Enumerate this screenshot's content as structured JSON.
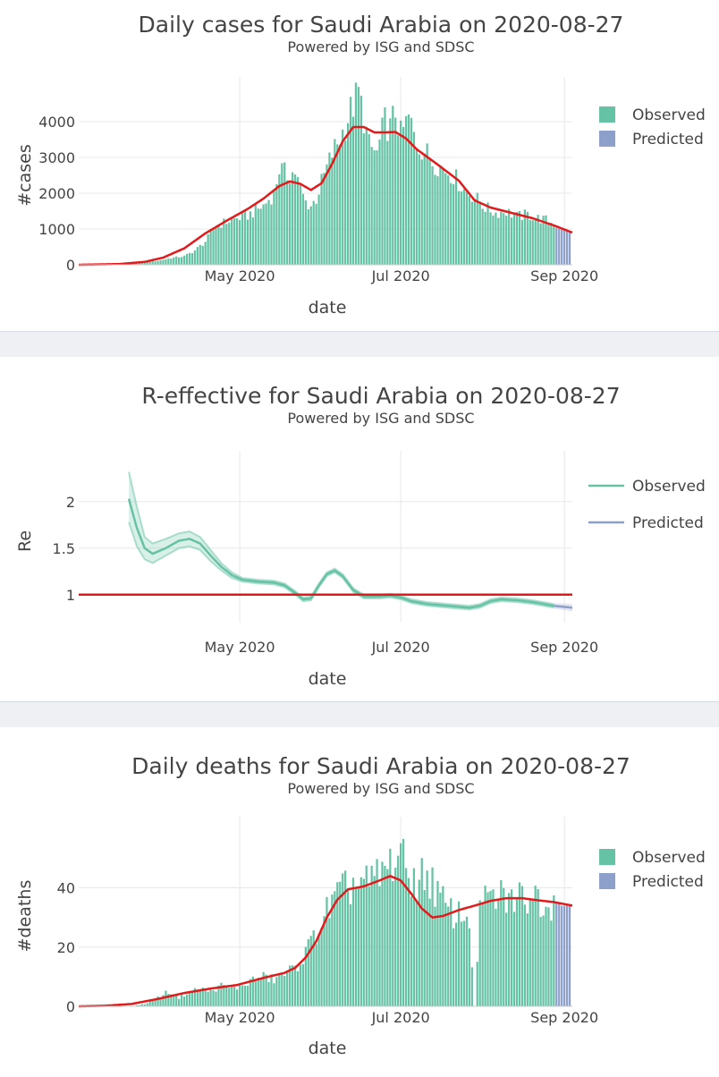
{
  "colors": {
    "observed": "#66c2a5",
    "predicted": "#8da0cb",
    "trend": "#e31a1c",
    "grid": "#e8e8e8"
  },
  "chart_data": [
    {
      "id": "cases",
      "type": "bar",
      "title": "Daily cases for Saudi Arabia on 2020-08-27",
      "subtitle": "Powered by ISG and SDSC",
      "xlabel": "date",
      "ylabel": "#cases",
      "ylim": [
        0,
        5000
      ],
      "yticks": [
        0,
        1000,
        2000,
        3000,
        4000
      ],
      "ytick_labels": [
        "0",
        "1000",
        "2000",
        "3000",
        "4000"
      ],
      "xticks": [
        {
          "day": 61,
          "label": "May 2020"
        },
        {
          "day": 122,
          "label": "Jul 2020"
        },
        {
          "day": 184,
          "label": "Sep 2020"
        }
      ],
      "x_range": [
        0,
        187
      ],
      "x_note": "day index counted from 2020-03-01",
      "legend": [
        "Observed",
        "Predicted"
      ],
      "legend_position": "top-right",
      "observed_start_day": 0,
      "observed_keypoints": [
        [
          0,
          1
        ],
        [
          10,
          15
        ],
        [
          20,
          50
        ],
        [
          30,
          110
        ],
        [
          35,
          190
        ],
        [
          40,
          240
        ],
        [
          44,
          400
        ],
        [
          48,
          650
        ],
        [
          52,
          1100
        ],
        [
          58,
          1250
        ],
        [
          64,
          1380
        ],
        [
          70,
          1650
        ],
        [
          74,
          2000
        ],
        [
          76,
          2700
        ],
        [
          79,
          2500
        ],
        [
          82,
          2600
        ],
        [
          84,
          2100
        ],
        [
          86,
          1750
        ],
        [
          88,
          1650
        ],
        [
          90,
          1850
        ],
        [
          92,
          2300
        ],
        [
          96,
          3100
        ],
        [
          100,
          3700
        ],
        [
          103,
          4300
        ],
        [
          106,
          4800
        ],
        [
          108,
          4100
        ],
        [
          110,
          3300
        ],
        [
          113,
          3100
        ],
        [
          116,
          4000
        ],
        [
          118,
          3800
        ],
        [
          120,
          4300
        ],
        [
          122,
          3600
        ],
        [
          125,
          4100
        ],
        [
          128,
          3400
        ],
        [
          131,
          3200
        ],
        [
          134,
          2900
        ],
        [
          138,
          2700
        ],
        [
          142,
          2500
        ],
        [
          146,
          2100
        ],
        [
          150,
          1900
        ],
        [
          154,
          1600
        ],
        [
          158,
          1450
        ],
        [
          162,
          1500
        ],
        [
          166,
          1350
        ],
        [
          170,
          1400
        ],
        [
          174,
          1300
        ],
        [
          177,
          1250
        ],
        [
          180,
          1150
        ]
      ],
      "predicted_start_day": 181,
      "predicted_values": [
        1030,
        1000,
        980,
        960,
        940,
        920
      ],
      "trend_keypoints": [
        [
          0,
          0
        ],
        [
          15,
          20
        ],
        [
          25,
          80
        ],
        [
          32,
          200
        ],
        [
          40,
          460
        ],
        [
          48,
          880
        ],
        [
          56,
          1230
        ],
        [
          64,
          1560
        ],
        [
          70,
          1850
        ],
        [
          76,
          2200
        ],
        [
          80,
          2330
        ],
        [
          84,
          2260
        ],
        [
          88,
          2090
        ],
        [
          92,
          2280
        ],
        [
          96,
          2820
        ],
        [
          100,
          3450
        ],
        [
          104,
          3850
        ],
        [
          108,
          3850
        ],
        [
          112,
          3700
        ],
        [
          116,
          3700
        ],
        [
          120,
          3710
        ],
        [
          124,
          3530
        ],
        [
          128,
          3230
        ],
        [
          136,
          2800
        ],
        [
          144,
          2350
        ],
        [
          150,
          1800
        ],
        [
          156,
          1600
        ],
        [
          164,
          1450
        ],
        [
          172,
          1300
        ],
        [
          180,
          1100
        ],
        [
          187,
          900
        ]
      ]
    },
    {
      "id": "reff",
      "type": "line",
      "title": "R-effective for Saudi Arabia on 2020-08-27",
      "subtitle": "Powered by ISG and SDSC",
      "xlabel": "date",
      "ylabel": "Re",
      "ylim": [
        0.7,
        2.45
      ],
      "yticks": [
        1,
        1.5,
        2
      ],
      "ytick_labels": [
        "1",
        "1.5",
        "2"
      ],
      "xticks": [
        {
          "day": 61,
          "label": "May 2020"
        },
        {
          "day": 122,
          "label": "Jul 2020"
        },
        {
          "day": 184,
          "label": "Sep 2020"
        }
      ],
      "x_range": [
        0,
        187
      ],
      "legend": [
        "Observed",
        "Predicted"
      ],
      "legend_position": "top-right",
      "reference_line": 1,
      "observed_keypoints": [
        [
          19,
          2.03
        ],
        [
          22,
          1.72
        ],
        [
          25,
          1.5
        ],
        [
          28,
          1.44
        ],
        [
          33,
          1.5
        ],
        [
          38,
          1.58
        ],
        [
          42,
          1.6
        ],
        [
          46,
          1.55
        ],
        [
          50,
          1.42
        ],
        [
          54,
          1.3
        ],
        [
          58,
          1.21
        ],
        [
          62,
          1.16
        ],
        [
          68,
          1.14
        ],
        [
          74,
          1.13
        ],
        [
          78,
          1.1
        ],
        [
          82,
          1.02
        ],
        [
          85,
          0.95
        ],
        [
          88,
          0.96
        ],
        [
          91,
          1.1
        ],
        [
          94,
          1.22
        ],
        [
          97,
          1.26
        ],
        [
          100,
          1.2
        ],
        [
          104,
          1.05
        ],
        [
          108,
          0.98
        ],
        [
          114,
          0.98
        ],
        [
          118,
          0.99
        ],
        [
          122,
          0.97
        ],
        [
          126,
          0.93
        ],
        [
          132,
          0.9
        ],
        [
          140,
          0.88
        ],
        [
          148,
          0.86
        ],
        [
          152,
          0.88
        ],
        [
          156,
          0.93
        ],
        [
          160,
          0.95
        ],
        [
          166,
          0.94
        ],
        [
          172,
          0.92
        ],
        [
          180,
          0.88
        ]
      ],
      "observed_upper_keypoints": [
        [
          19,
          2.32
        ],
        [
          22,
          1.95
        ],
        [
          25,
          1.62
        ],
        [
          28,
          1.55
        ],
        [
          33,
          1.6
        ],
        [
          38,
          1.66
        ],
        [
          42,
          1.68
        ],
        [
          46,
          1.62
        ],
        [
          50,
          1.48
        ],
        [
          54,
          1.34
        ],
        [
          58,
          1.24
        ],
        [
          62,
          1.18
        ],
        [
          68,
          1.16
        ],
        [
          74,
          1.15
        ],
        [
          78,
          1.12
        ],
        [
          82,
          1.04
        ],
        [
          85,
          0.97
        ],
        [
          88,
          0.98
        ],
        [
          91,
          1.12
        ],
        [
          94,
          1.24
        ],
        [
          97,
          1.28
        ],
        [
          100,
          1.22
        ],
        [
          104,
          1.07
        ],
        [
          108,
          1.0
        ],
        [
          114,
          1.0
        ],
        [
          118,
          1.01
        ],
        [
          122,
          0.99
        ],
        [
          126,
          0.95
        ],
        [
          132,
          0.92
        ],
        [
          140,
          0.9
        ],
        [
          148,
          0.88
        ],
        [
          152,
          0.9
        ],
        [
          156,
          0.95
        ],
        [
          160,
          0.97
        ],
        [
          166,
          0.96
        ],
        [
          172,
          0.94
        ],
        [
          180,
          0.9
        ]
      ],
      "observed_lower_keypoints": [
        [
          19,
          1.78
        ],
        [
          22,
          1.52
        ],
        [
          25,
          1.38
        ],
        [
          28,
          1.34
        ],
        [
          33,
          1.42
        ],
        [
          38,
          1.5
        ],
        [
          42,
          1.52
        ],
        [
          46,
          1.48
        ],
        [
          50,
          1.36
        ],
        [
          54,
          1.26
        ],
        [
          58,
          1.18
        ],
        [
          62,
          1.14
        ],
        [
          68,
          1.12
        ],
        [
          74,
          1.11
        ],
        [
          78,
          1.08
        ],
        [
          82,
          1.0
        ],
        [
          85,
          0.93
        ],
        [
          88,
          0.94
        ],
        [
          91,
          1.08
        ],
        [
          94,
          1.2
        ],
        [
          97,
          1.24
        ],
        [
          100,
          1.18
        ],
        [
          104,
          1.03
        ],
        [
          108,
          0.96
        ],
        [
          114,
          0.96
        ],
        [
          118,
          0.97
        ],
        [
          122,
          0.95
        ],
        [
          126,
          0.91
        ],
        [
          132,
          0.88
        ],
        [
          140,
          0.86
        ],
        [
          148,
          0.84
        ],
        [
          152,
          0.86
        ],
        [
          156,
          0.91
        ],
        [
          160,
          0.93
        ],
        [
          166,
          0.92
        ],
        [
          172,
          0.9
        ],
        [
          180,
          0.86
        ]
      ],
      "predicted_keypoints": [
        [
          180,
          0.88
        ],
        [
          187,
          0.86
        ]
      ],
      "predicted_upper_keypoints": [
        [
          180,
          0.91
        ],
        [
          187,
          0.9
        ]
      ],
      "predicted_lower_keypoints": [
        [
          180,
          0.85
        ],
        [
          187,
          0.82
        ]
      ]
    },
    {
      "id": "deaths",
      "type": "bar",
      "title": "Daily deaths for Saudi Arabia on 2020-08-27",
      "subtitle": "Powered by ISG and SDSC",
      "xlabel": "date",
      "ylabel": "#deaths",
      "ylim": [
        0,
        61
      ],
      "yticks": [
        0,
        20,
        40
      ],
      "ytick_labels": [
        "0",
        "20",
        "40"
      ],
      "xticks": [
        {
          "day": 61,
          "label": "May 2020"
        },
        {
          "day": 122,
          "label": "Jul 2020"
        },
        {
          "day": 184,
          "label": "Sep 2020"
        }
      ],
      "x_range": [
        0,
        187
      ],
      "legend": [
        "Observed",
        "Predicted"
      ],
      "legend_position": "top-right",
      "observed_start_day": 0,
      "observed_keypoints": [
        [
          0,
          0
        ],
        [
          20,
          0
        ],
        [
          26,
          1
        ],
        [
          30,
          3
        ],
        [
          34,
          5
        ],
        [
          38,
          3
        ],
        [
          42,
          5
        ],
        [
          46,
          6
        ],
        [
          50,
          5
        ],
        [
          54,
          7
        ],
        [
          58,
          6
        ],
        [
          62,
          7
        ],
        [
          66,
          9
        ],
        [
          70,
          10
        ],
        [
          74,
          9
        ],
        [
          78,
          11
        ],
        [
          82,
          13
        ],
        [
          86,
          18
        ],
        [
          90,
          25
        ],
        [
          94,
          32
        ],
        [
          98,
          37
        ],
        [
          102,
          40
        ],
        [
          106,
          42
        ],
        [
          110,
          41
        ],
        [
          114,
          44
        ],
        [
          118,
          48
        ],
        [
          121,
          52
        ],
        [
          124,
          46
        ],
        [
          128,
          42
        ],
        [
          132,
          45
        ],
        [
          136,
          38
        ],
        [
          140,
          32
        ],
        [
          144,
          31
        ],
        [
          148,
          30
        ],
        [
          150,
          0
        ],
        [
          152,
          34
        ],
        [
          156,
          36
        ],
        [
          160,
          37
        ],
        [
          164,
          36
        ],
        [
          168,
          37
        ],
        [
          172,
          38
        ],
        [
          176,
          36
        ],
        [
          180,
          35
        ]
      ],
      "predicted_start_day": 181,
      "predicted_values": [
        35,
        35,
        34,
        34,
        34,
        34
      ],
      "trend_keypoints": [
        [
          0,
          0
        ],
        [
          10,
          0.2
        ],
        [
          20,
          0.8
        ],
        [
          30,
          2.5
        ],
        [
          40,
          4.5
        ],
        [
          50,
          6
        ],
        [
          60,
          7.2
        ],
        [
          70,
          9.6
        ],
        [
          78,
          11.3
        ],
        [
          82,
          13
        ],
        [
          86,
          16.5
        ],
        [
          90,
          22
        ],
        [
          94,
          30
        ],
        [
          98,
          36
        ],
        [
          102,
          39.5
        ],
        [
          108,
          40.5
        ],
        [
          114,
          42.5
        ],
        [
          118,
          44
        ],
        [
          122,
          42.5
        ],
        [
          126,
          38
        ],
        [
          130,
          33
        ],
        [
          134,
          30
        ],
        [
          138,
          30.5
        ],
        [
          144,
          32.5
        ],
        [
          150,
          34
        ],
        [
          156,
          35.6
        ],
        [
          162,
          36.5
        ],
        [
          168,
          36.5
        ],
        [
          174,
          35.8
        ],
        [
          180,
          35.2
        ],
        [
          187,
          34
        ]
      ]
    }
  ]
}
